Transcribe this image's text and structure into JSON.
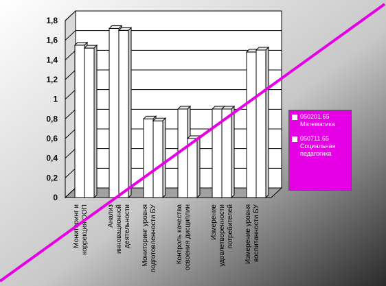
{
  "chart_data": {
    "type": "bar",
    "categories": [
      "Мониторинг и коррекция ООП",
      "Анализ инновационной деятельности",
      "Мониторинг уровня подготовленности БУ",
      "Контроль качества освоения дисциплин",
      "Измерение удовлетворенности потребителей",
      "Измерение уровня воспитанности БУ"
    ],
    "series": [
      {
        "name": "050201.65 Математика",
        "values": [
          1.55,
          1.72,
          0.8,
          0.9,
          0.9,
          1.48
        ]
      },
      {
        "name": "050711.65 Социальная педагогика",
        "values": [
          1.52,
          1.7,
          0.78,
          0.6,
          0.9,
          1.5
        ]
      }
    ],
    "y_ticks": [
      "0",
      "0,2",
      "0,4",
      "0,6",
      "0,8",
      "1",
      "1,2",
      "1,4",
      "1,6",
      "1,8"
    ],
    "ylim": [
      0,
      1.8
    ],
    "grid": true,
    "legend_position": "right",
    "colors": {
      "bar_face": "#ffffff",
      "bar_top": "#e8e8e8",
      "bar_side": "#c8c8c8",
      "legend_bg": "#e600e6",
      "overlay_line": "#e600e6"
    }
  }
}
